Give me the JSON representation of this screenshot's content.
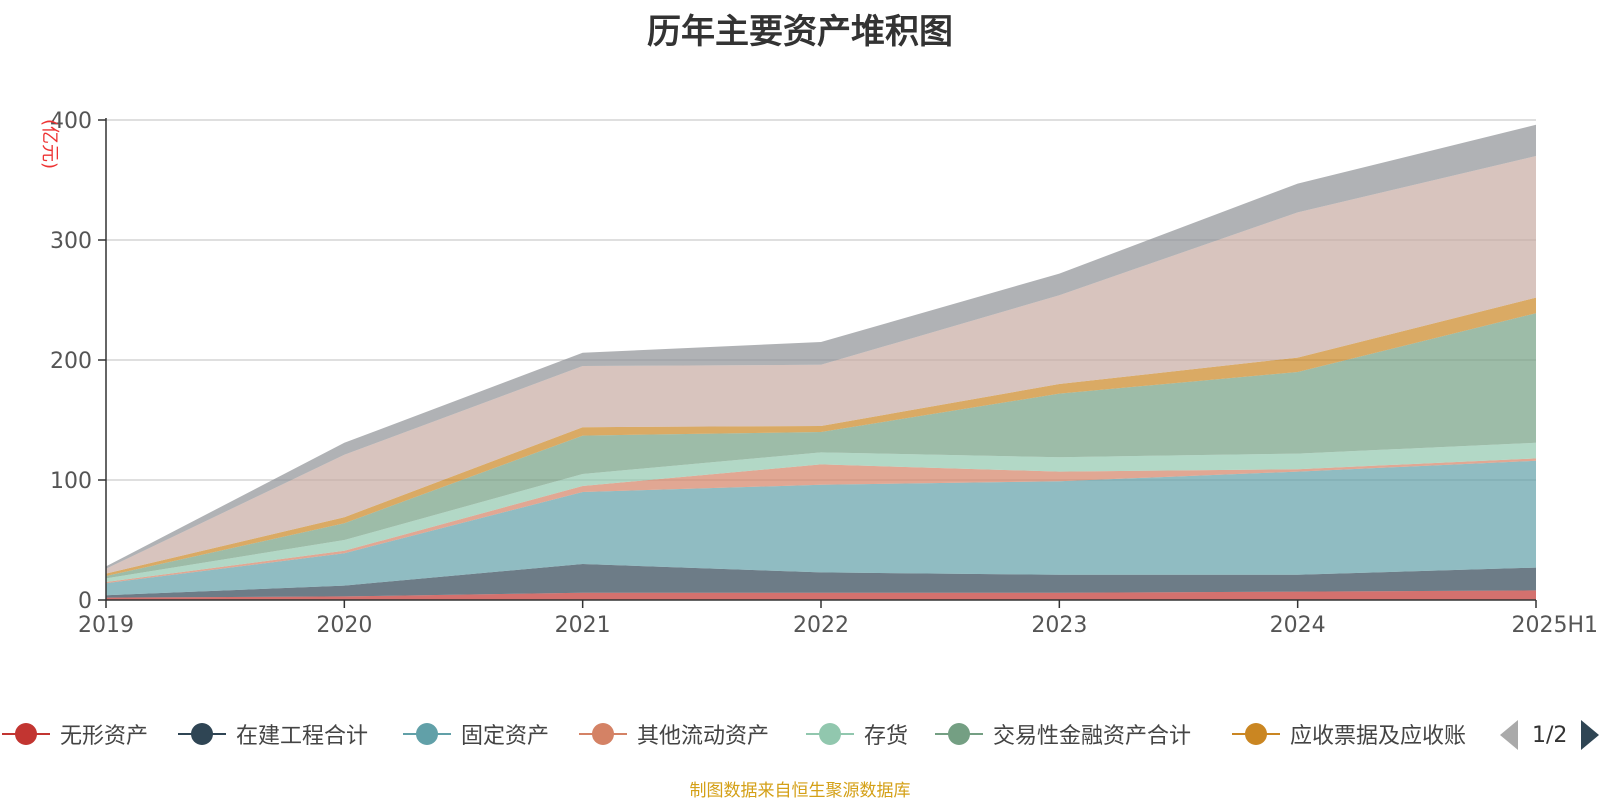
{
  "title": "历年主要资产堆积图",
  "unit_label": "(亿元)",
  "source": "制图数据来自恒生聚源数据库",
  "pager": {
    "text": "1/2",
    "prev_icon": "triangle-left-icon",
    "next_icon": "triangle-right-icon"
  },
  "legend": [
    {
      "name": "无形资产",
      "color": "#c23531"
    },
    {
      "name": "在建工程合计",
      "color": "#2f4554"
    },
    {
      "name": "固定资产",
      "color": "#61a0a8"
    },
    {
      "name": "其他流动资产",
      "color": "#d48265"
    },
    {
      "name": "存货",
      "color": "#91c7ae"
    },
    {
      "name": "交易性金融资产合计",
      "color": "#749f83"
    },
    {
      "name": "应收票据及应收账",
      "color": "#ca8622"
    }
  ],
  "chart_data": {
    "type": "area",
    "stacked": true,
    "title": "历年主要资产堆积图",
    "ylabel": "(亿元)",
    "x": [
      "2019",
      "2020",
      "2021",
      "2022",
      "2023",
      "2024",
      "2025H1"
    ],
    "ylim": [
      0,
      400
    ],
    "yticks": [
      0,
      100,
      200,
      300,
      400
    ],
    "grid": true,
    "legend_position": "bottom",
    "series": [
      {
        "name": "无形资产",
        "color": "#c23531",
        "values": [
          2,
          3,
          6,
          6,
          6,
          7,
          8
        ]
      },
      {
        "name": "在建工程合计",
        "color": "#2f4554",
        "values": [
          2,
          9,
          24,
          17,
          15,
          14,
          19
        ]
      },
      {
        "name": "固定资产",
        "color": "#61a0a8",
        "values": [
          10,
          27,
          60,
          73,
          78,
          86,
          89
        ]
      },
      {
        "name": "其他流动资产",
        "color": "#d48265",
        "values": [
          1,
          2,
          5,
          17,
          8,
          2,
          2
        ]
      },
      {
        "name": "存货",
        "color": "#91c7ae",
        "values": [
          3,
          9,
          10,
          10,
          12,
          13,
          13
        ]
      },
      {
        "name": "交易性金融资产合计",
        "color": "#749f83",
        "values": [
          2,
          14,
          32,
          17,
          53,
          68,
          108
        ]
      },
      {
        "name": "应收票据及应收账",
        "color": "#ca8622",
        "values": [
          2,
          5,
          7,
          5,
          8,
          12,
          13
        ]
      },
      {
        "color": "#c8aba3",
        "values": [
          4,
          52,
          51,
          51,
          74,
          121,
          118
        ]
      },
      {
        "color": "#8f9196",
        "values": [
          2,
          10,
          11,
          19,
          18,
          24,
          26
        ]
      }
    ]
  }
}
